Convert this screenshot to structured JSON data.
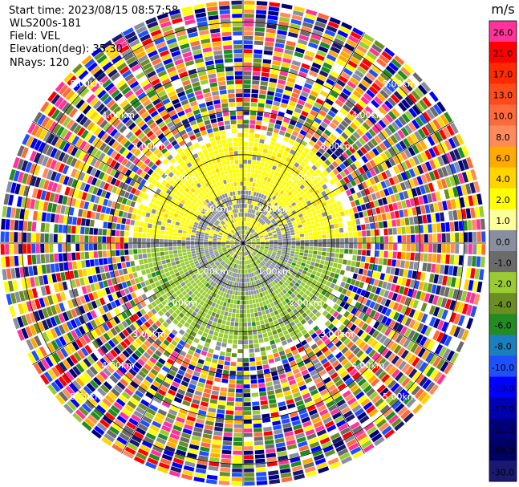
{
  "header": {
    "start_time": "Start time: 2023/08/15 08:57:58",
    "instrument": "WLS200s-181",
    "field": "Field: VEL",
    "elevation": "Elevation(deg): 35.30",
    "nrays": "NRays: 120"
  },
  "colorbar": {
    "unit": "m/s",
    "levels": [
      {
        "label": "26.0",
        "color": "#ff3399"
      },
      {
        "label": "21.0",
        "color": "#ff0000"
      },
      {
        "label": "17.0",
        "color": "#ff2a00"
      },
      {
        "label": "13.0",
        "color": "#ff4b1a"
      },
      {
        "label": "10.0",
        "color": "#ff6a3c"
      },
      {
        "label": "8.0",
        "color": "#ff8a5a"
      },
      {
        "label": "6.0",
        "color": "#ffaa00"
      },
      {
        "label": "4.0",
        "color": "#ffd400"
      },
      {
        "label": "2.0",
        "color": "#ffff00"
      },
      {
        "label": "1.0",
        "color": "#ffff99"
      },
      {
        "label": "0.0",
        "color": "#8a8fa0"
      },
      {
        "label": "-1.0",
        "color": "#6b6b6b"
      },
      {
        "label": "-2.0",
        "color": "#99cc33"
      },
      {
        "label": "-4.0",
        "color": "#6b8e23"
      },
      {
        "label": "-6.0",
        "color": "#228b22"
      },
      {
        "label": "-8.0",
        "color": "#1a7fbf"
      },
      {
        "label": "-10.0",
        "color": "#1e50ff"
      },
      {
        "label": "-13.0",
        "color": "#0000ff"
      },
      {
        "label": "-17.0",
        "color": "#0000b4"
      },
      {
        "label": "-21.0",
        "color": "#00007a"
      },
      {
        "label": "-26.0",
        "color": "#000060"
      },
      {
        "label": "-30.0",
        "color": "#191970"
      }
    ]
  },
  "chart_data": {
    "type": "ppi",
    "field": "VEL",
    "nrays": 120,
    "elevation_deg": 35.3,
    "range_ring_labels": [
      "1.00km",
      "2.00km",
      "3.00km",
      "4.00km",
      "5.00km"
    ],
    "range_rings_km": [
      1,
      2,
      3,
      4,
      5
    ],
    "max_range_km": 5.5,
    "spokes_deg": [
      0,
      30,
      60,
      90,
      120,
      150,
      180,
      210,
      240,
      270,
      300,
      330
    ],
    "inner_field": {
      "radius_km": 2.6,
      "north_half": "positive (yellow/gray)",
      "south_half": "negative (green/gray)"
    },
    "outer_field": "noise (random multicolor)"
  }
}
